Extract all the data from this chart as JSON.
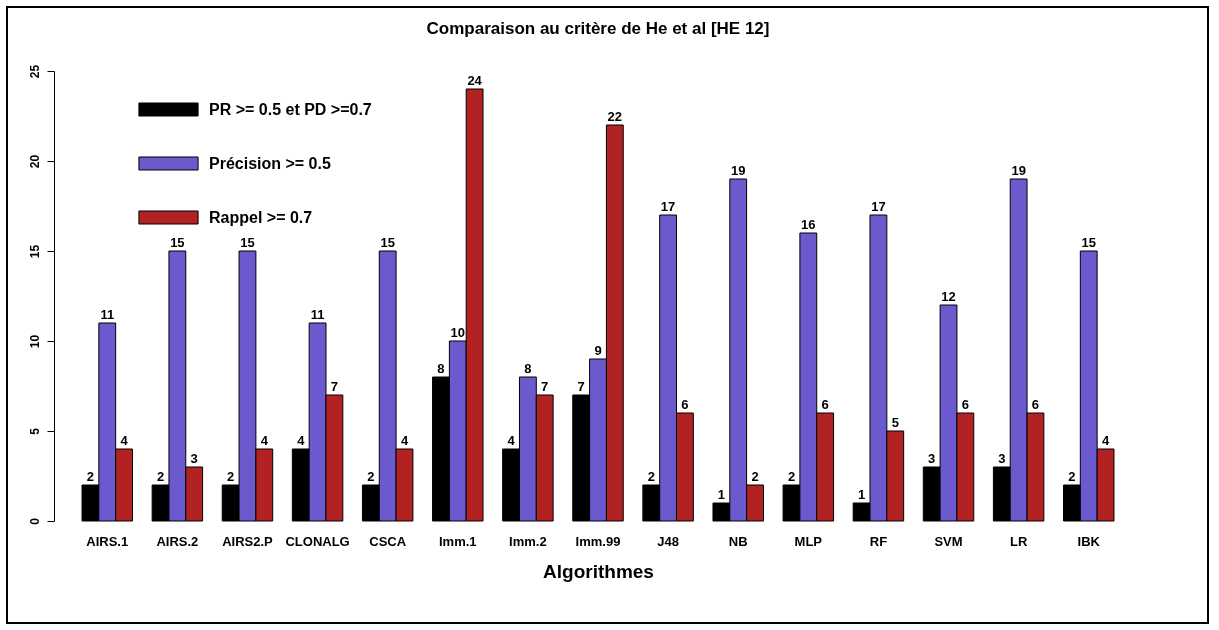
{
  "chart_data": {
    "type": "bar",
    "title": "Comparaison au critère de He et al [HE 12]",
    "xlabel": "Algorithmes",
    "categories": [
      "AIRS.1",
      "AIRS.2",
      "AIRS2.P",
      "CLONALG",
      "CSCA",
      "Imm.1",
      "Imm.2",
      "Imm.99",
      "J48",
      "NB",
      "MLP",
      "RF",
      "SVM",
      "LR",
      "IBK"
    ],
    "series": [
      {
        "name": "PR >= 0.5 et PD >=0.7",
        "color": "#000000",
        "values": [
          2,
          2,
          2,
          4,
          2,
          8,
          4,
          7,
          2,
          1,
          2,
          1,
          3,
          3,
          2
        ]
      },
      {
        "name": "Précision >= 0.5",
        "color": "#6a5acd",
        "values": [
          11,
          15,
          15,
          11,
          15,
          10,
          8,
          9,
          17,
          19,
          16,
          17,
          12,
          19,
          15
        ]
      },
      {
        "name": "Rappel >= 0.7",
        "color": "#b22222",
        "values": [
          4,
          3,
          4,
          7,
          4,
          24,
          7,
          22,
          6,
          2,
          6,
          5,
          6,
          6,
          4
        ]
      }
    ],
    "ylim": [
      0,
      25
    ],
    "yticks": [
      0,
      5,
      10,
      15,
      20,
      25
    ],
    "data_labels": true,
    "legend": "top left"
  }
}
